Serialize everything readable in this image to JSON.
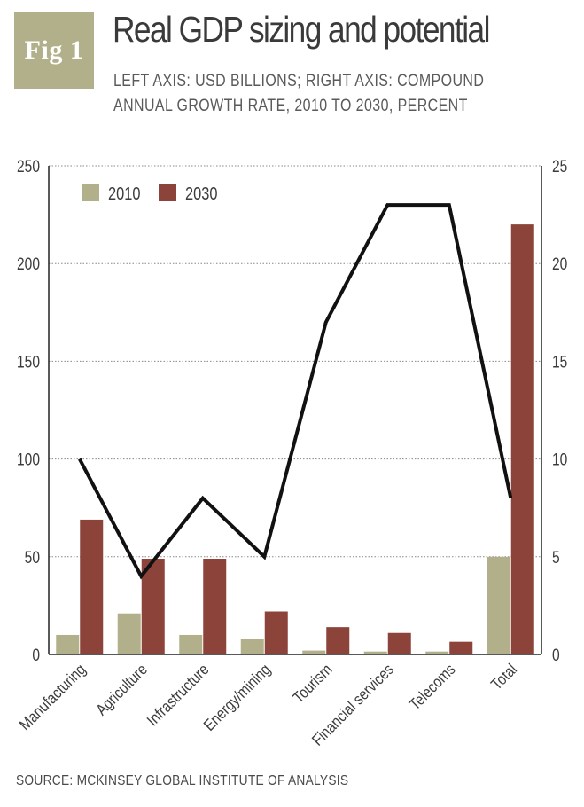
{
  "badge": {
    "label": "Fig 1"
  },
  "header": {
    "title": "Real GDP sizing and potential",
    "subtitle_line1": "LEFT AXIS: USD BILLIONS; RIGHT AXIS: COMPOUND",
    "subtitle_line2": "ANNUAL GROWTH RATE, 2010 TO 2030, PERCENT"
  },
  "footer": {
    "source": "SOURCE: MCKINSEY GLOBAL INSTITUTE OF ANALYSIS"
  },
  "colors": {
    "series_2010": "#b1b08a",
    "series_2030": "#8b433a",
    "line": "#111111"
  },
  "chart_data": {
    "type": "bar",
    "categories": [
      "Manufacturing",
      "Agriculture",
      "Infrastructure",
      "Energy/mining",
      "Tourism",
      "Financial services",
      "Telecoms",
      "Total"
    ],
    "series": [
      {
        "name": "2010",
        "axis": "left",
        "values": [
          10,
          21,
          10,
          8,
          2,
          1.5,
          1.5,
          50
        ]
      },
      {
        "name": "2030",
        "axis": "left",
        "values": [
          69,
          49,
          49,
          22,
          14,
          11,
          6.5,
          220
        ]
      },
      {
        "name": "CAGR 2010-2030",
        "type": "line",
        "axis": "right",
        "values": [
          10,
          4,
          8,
          5,
          17,
          23,
          23,
          8
        ]
      }
    ],
    "left_axis": {
      "range": [
        0,
        250
      ],
      "ticks": [
        "0",
        "50",
        "100",
        "150",
        "200",
        "250"
      ]
    },
    "right_axis": {
      "range": [
        0,
        25
      ],
      "ticks": [
        "0",
        "5",
        "10",
        "15",
        "20",
        "25"
      ]
    },
    "legend": [
      "2010",
      "2030"
    ],
    "legend_position": "top-left",
    "grid": "horizontal dotted"
  }
}
